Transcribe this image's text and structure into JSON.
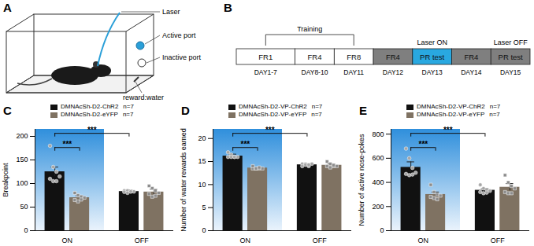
{
  "panel_a": {
    "letter": "A",
    "labels": {
      "laser": "Laser",
      "active": "Active port",
      "inactive": "Inactive port",
      "reward": "reward:water"
    }
  },
  "panel_b": {
    "letter": "B",
    "bracket": {
      "label": "Training",
      "from": 0,
      "to": 2
    },
    "stages": [
      {
        "label": "FR1",
        "day": "DAY1-7",
        "color": "#ffffff"
      },
      {
        "label": "FR4",
        "day": "DAY8-10",
        "color": "#ffffff"
      },
      {
        "label": "FR8",
        "day": "DAY11",
        "color": "#ffffff"
      },
      {
        "label": "FR4",
        "day": "DAY12",
        "color": "#7f7f7f"
      },
      {
        "label": "PR test",
        "day": "DAY13",
        "color": "#29a8e0",
        "header": "Laser ON"
      },
      {
        "label": "FR4",
        "day": "DAY14",
        "color": "#7f7f7f"
      },
      {
        "label": "PR test",
        "day": "DAY15",
        "color": "#7f7f7f",
        "header": "Laser OFF"
      }
    ]
  },
  "chart_data": [
    {
      "type": "bar",
      "panel_label": "C",
      "ylabel": "Breakpoint",
      "categories": [
        "ON",
        "OFF"
      ],
      "ylim": [
        0,
        215
      ],
      "yticks": [
        0,
        50,
        100,
        150,
        200
      ],
      "series": [
        {
          "name": "DMNAcSh-D2-ChR2",
          "n_label": "n=7",
          "color": "#111111",
          "marker": "circle",
          "values": [
            125,
            83
          ],
          "errors": [
            10,
            3
          ],
          "points": [
            [
              180,
              135,
              125,
              115,
              110,
              105,
              105
            ],
            [
              85,
              85,
              83,
              83,
              82,
              80,
              83
            ]
          ]
        },
        {
          "name": "DMNAcSh-D2-eYFP",
          "n_label": "n=7",
          "color": "#7f7262",
          "marker": "square",
          "values": [
            70,
            82
          ],
          "errors": [
            4,
            6
          ],
          "points": [
            [
              80,
              75,
              72,
              70,
              65,
              62,
              66
            ],
            [
              95,
              90,
              85,
              80,
              78,
              72,
              74
            ]
          ]
        }
      ],
      "significance": [
        {
          "label": "***",
          "from": [
            0,
            0
          ],
          "to": [
            0,
            1
          ]
        },
        {
          "label": "***",
          "from": [
            0,
            0
          ],
          "to": [
            1,
            0
          ]
        }
      ]
    },
    {
      "type": "bar",
      "panel_label": "D",
      "ylabel": "Number of water rewards earned",
      "categories": [
        "ON",
        "OFF"
      ],
      "ylim": [
        0,
        22
      ],
      "yticks": [
        0,
        5,
        10,
        15,
        20
      ],
      "series": [
        {
          "name": "DMNAcSh-D2-VP-ChR2",
          "n_label": "n=7",
          "color": "#111111",
          "marker": "circle",
          "values": [
            16.2,
            14.3
          ],
          "errors": [
            0.4,
            0.2
          ],
          "points": [
            [
              17,
              16.5,
              16,
              16,
              16,
              16,
              16
            ],
            [
              14.5,
              14.5,
              14,
              14.5,
              14,
              14.3,
              14.3
            ]
          ]
        },
        {
          "name": "DMNAcSh-D2-VP-eYFP",
          "n_label": "n=7",
          "color": "#7f7262",
          "marker": "square",
          "values": [
            13.6,
            14.2
          ],
          "errors": [
            0.2,
            0.3
          ],
          "points": [
            [
              13.5,
              13.5,
              13.5,
              13.5,
              14,
              13.5,
              13.7
            ],
            [
              15,
              14.5,
              14,
              14,
              14,
              13.7,
              14.2
            ]
          ]
        }
      ],
      "significance": [
        {
          "label": "***",
          "from": [
            0,
            0
          ],
          "to": [
            0,
            1
          ]
        },
        {
          "label": "***",
          "from": [
            0,
            0
          ],
          "to": [
            1,
            0
          ]
        }
      ]
    },
    {
      "type": "bar",
      "panel_label": "E",
      "ylabel": "Number of active nose-pokes",
      "categories": [
        "ON",
        "OFF"
      ],
      "ylim": [
        0,
        840
      ],
      "yticks": [
        0,
        200,
        400,
        600,
        800
      ],
      "series": [
        {
          "name": "DMNAcSh-D2-VP-ChR2",
          "n_label": "n=7",
          "color": "#111111",
          "marker": "circle",
          "values": [
            525,
            335
          ],
          "errors": [
            45,
            15
          ],
          "points": [
            [
              680,
              600,
              520,
              480,
              470,
              460,
              465
            ],
            [
              380,
              350,
              340,
              330,
              320,
              310,
              315
            ]
          ]
        },
        {
          "name": "DMNAcSh-D2-VP-eYFP",
          "n_label": "n=7",
          "color": "#7f7262",
          "marker": "square",
          "values": [
            300,
            360
          ],
          "errors": [
            20,
            30
          ],
          "points": [
            [
              380,
              320,
              300,
              290,
              280,
              270,
              260
            ],
            [
              460,
              400,
              370,
              350,
              320,
              310,
              310
            ]
          ]
        }
      ],
      "significance": [
        {
          "label": "***",
          "from": [
            0,
            0
          ],
          "to": [
            0,
            1
          ]
        },
        {
          "label": "***",
          "from": [
            0,
            0
          ],
          "to": [
            1,
            0
          ]
        }
      ]
    }
  ]
}
